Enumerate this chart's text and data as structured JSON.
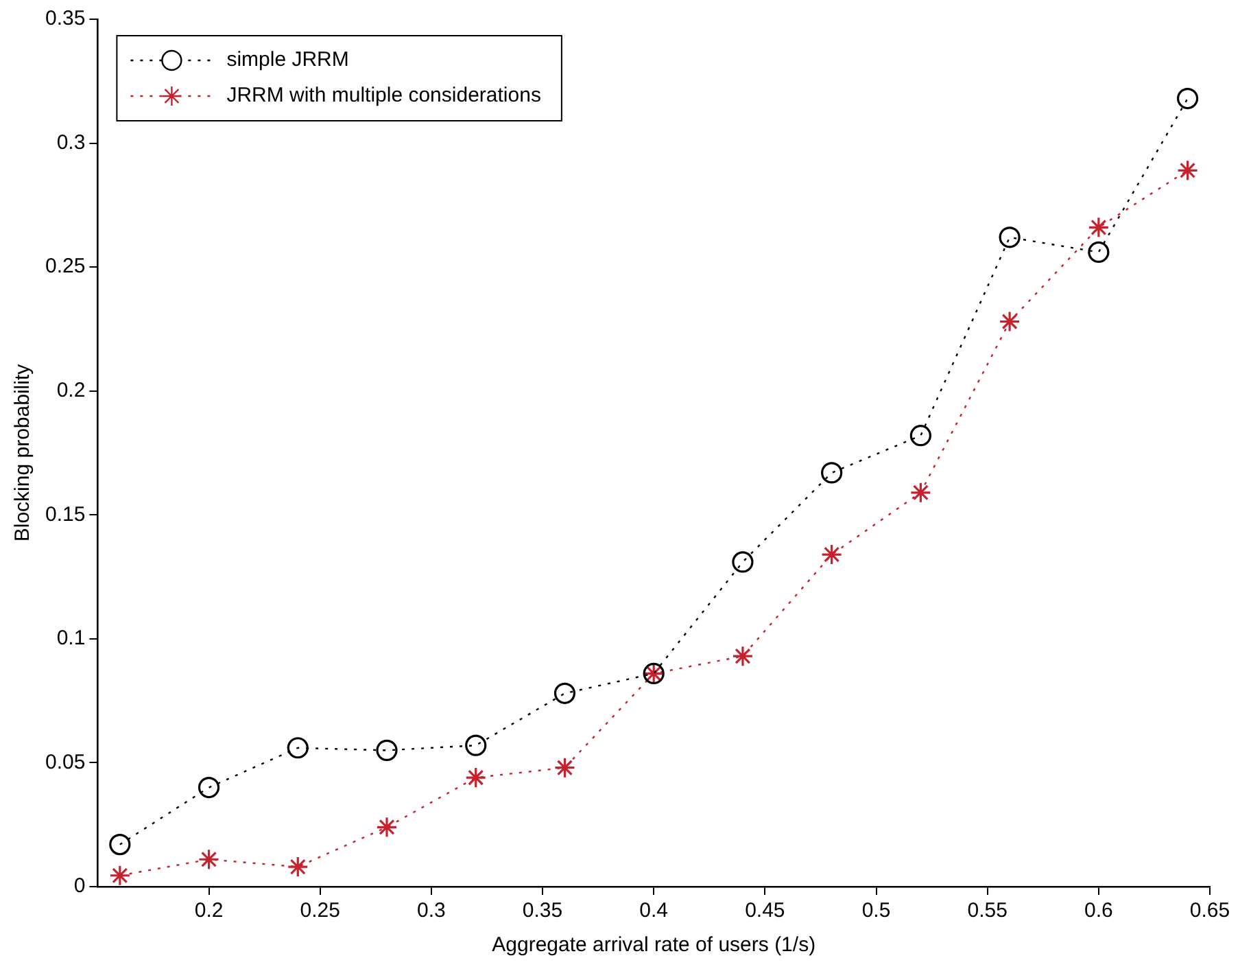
{
  "chart_data": {
    "type": "line",
    "xlabel": "Aggregate arrival rate of users (1/s)",
    "ylabel": "Blocking probability",
    "x": [
      0.16,
      0.2,
      0.24,
      0.28,
      0.32,
      0.36,
      0.4,
      0.44,
      0.48,
      0.52,
      0.56,
      0.6,
      0.64
    ],
    "series": [
      {
        "name": "simple JRRM",
        "color": "#000000",
        "marker": "circle",
        "values": [
          0.017,
          0.04,
          0.056,
          0.055,
          0.057,
          0.078,
          0.086,
          0.131,
          0.167,
          0.182,
          0.262,
          0.256,
          0.318
        ]
      },
      {
        "name": "JRRM with multiple considerations",
        "color": "#c8202c",
        "marker": "cross",
        "values": [
          0.0045,
          0.011,
          0.008,
          0.024,
          0.044,
          0.048,
          0.086,
          0.093,
          0.134,
          0.159,
          0.228,
          0.266,
          0.289
        ]
      }
    ],
    "line_style": "dotted",
    "grid": false,
    "legend": "top left",
    "xlim": [
      0.15,
      0.65
    ],
    "xticks": [
      0.2,
      0.25,
      0.3,
      0.35,
      0.4,
      0.45,
      0.5,
      0.55,
      0.6,
      0.65
    ],
    "ylim": [
      0,
      0.35
    ],
    "yticks": [
      0,
      0.05,
      0.1,
      0.15,
      0.2,
      0.25,
      0.3,
      0.35
    ]
  }
}
